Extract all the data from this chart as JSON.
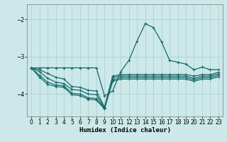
{
  "xlabel": "Humidex (Indice chaleur)",
  "background_color": "#cce8e8",
  "grid_color": "#aacccc",
  "line_color": "#1a6b6b",
  "xlim": [
    -0.5,
    23.5
  ],
  "ylim": [
    -4.6,
    -1.6
  ],
  "yticks": [
    -4,
    -3,
    -2
  ],
  "xticks": [
    0,
    1,
    2,
    3,
    4,
    5,
    6,
    7,
    8,
    9,
    10,
    11,
    12,
    13,
    14,
    15,
    16,
    17,
    18,
    19,
    20,
    21,
    22,
    23
  ],
  "lines": [
    {
      "x": [
        0,
        1,
        2,
        3,
        4,
        5,
        6,
        7,
        8,
        9,
        10,
        11,
        12,
        13,
        14,
        15,
        16,
        17,
        18,
        19,
        20,
        21,
        22,
        23
      ],
      "y": [
        -3.3,
        -3.35,
        -3.45,
        -3.55,
        -3.6,
        -3.8,
        -3.82,
        -3.9,
        -3.92,
        -4.35,
        -3.52,
        -3.48,
        -3.48,
        -3.48,
        -3.48,
        -3.48,
        -3.48,
        -3.48,
        -3.48,
        -3.48,
        -3.52,
        -3.48,
        -3.48,
        -3.42
      ]
    },
    {
      "x": [
        0,
        1,
        2,
        3,
        4,
        5,
        6,
        7,
        8,
        9,
        10,
        11,
        12,
        13,
        14,
        15,
        16,
        17,
        18,
        19,
        20,
        21,
        22,
        23
      ],
      "y": [
        -3.3,
        -3.4,
        -3.58,
        -3.68,
        -3.72,
        -3.88,
        -3.9,
        -4.0,
        -4.02,
        -4.37,
        -3.56,
        -3.52,
        -3.52,
        -3.52,
        -3.52,
        -3.52,
        -3.52,
        -3.52,
        -3.52,
        -3.52,
        -3.58,
        -3.52,
        -3.52,
        -3.46
      ]
    },
    {
      "x": [
        0,
        1,
        2,
        3,
        4,
        5,
        6,
        7,
        8,
        9,
        10,
        11,
        12,
        13,
        14,
        15,
        16,
        17,
        18,
        19,
        20,
        21,
        22,
        23
      ],
      "y": [
        -3.3,
        -3.5,
        -3.68,
        -3.76,
        -3.78,
        -3.98,
        -4.0,
        -4.1,
        -4.12,
        -4.38,
        -3.62,
        -3.56,
        -3.56,
        -3.56,
        -3.56,
        -3.56,
        -3.56,
        -3.56,
        -3.56,
        -3.56,
        -3.62,
        -3.56,
        -3.56,
        -3.5
      ]
    },
    {
      "x": [
        0,
        1,
        2,
        3,
        4,
        5,
        6,
        7,
        8,
        9,
        10,
        11,
        12,
        13,
        14,
        15,
        16,
        17,
        18,
        19,
        20,
        21,
        22,
        23
      ],
      "y": [
        -3.3,
        -3.55,
        -3.74,
        -3.8,
        -3.82,
        -4.02,
        -4.04,
        -4.14,
        -4.16,
        -4.4,
        -3.66,
        -3.6,
        -3.6,
        -3.6,
        -3.6,
        -3.6,
        -3.6,
        -3.6,
        -3.6,
        -3.6,
        -3.66,
        -3.6,
        -3.6,
        -3.54
      ]
    },
    {
      "x": [
        0,
        1,
        2,
        3,
        4,
        5,
        6,
        7,
        8,
        9,
        10,
        11,
        12,
        13,
        14,
        15,
        16,
        17,
        18,
        19,
        20,
        21,
        22,
        23
      ],
      "y": [
        -3.3,
        -3.3,
        -3.3,
        -3.3,
        -3.3,
        -3.3,
        -3.3,
        -3.3,
        -3.3,
        -4.05,
        -3.92,
        -3.4,
        -3.1,
        -2.58,
        -2.12,
        -2.22,
        -2.6,
        -3.1,
        -3.15,
        -3.2,
        -3.35,
        -3.28,
        -3.35,
        -3.35
      ]
    }
  ]
}
